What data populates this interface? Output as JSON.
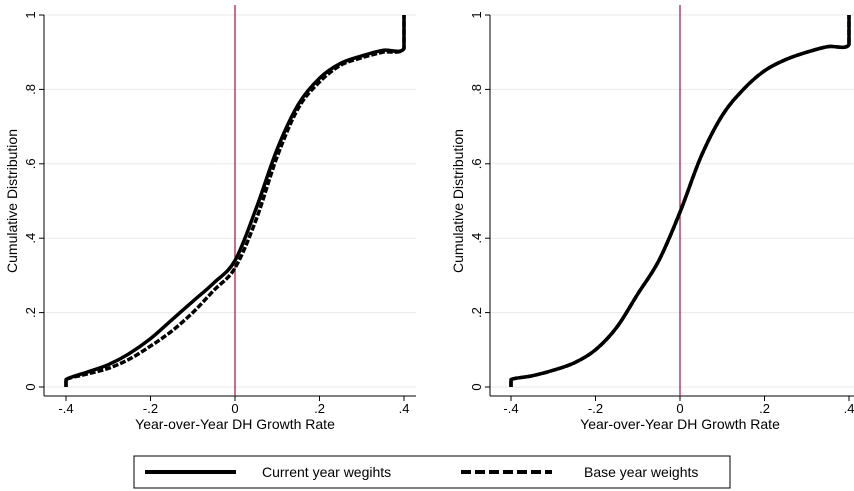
{
  "chart_data": [
    {
      "type": "line",
      "xlabel": "Year-over-Year DH Growth Rate",
      "ylabel": "Cumulative Distribution",
      "xlim": [
        -0.4,
        0.4
      ],
      "ylim": [
        0,
        1
      ],
      "xticks": [
        -0.4,
        -0.2,
        0,
        0.2,
        0.4
      ],
      "xtick_labels": [
        "-.4",
        "-.2",
        "0",
        ".2",
        ".4"
      ],
      "yticks": [
        0,
        0.2,
        0.4,
        0.6,
        0.8,
        1
      ],
      "ytick_labels": [
        "0",
        ".2",
        ".4",
        ".6",
        ".8",
        "1"
      ],
      "grid": true,
      "reference_line_x": 0,
      "series": [
        {
          "name": "Current year wegihts",
          "style": "solid",
          "x": [
            -0.4,
            -0.4,
            -0.35,
            -0.3,
            -0.25,
            -0.2,
            -0.15,
            -0.1,
            -0.05,
            0,
            0.05,
            0.1,
            0.15,
            0.2,
            0.25,
            0.3,
            0.35,
            0.4,
            0.4
          ],
          "y": [
            0.0,
            0.02,
            0.04,
            0.06,
            0.09,
            0.13,
            0.18,
            0.23,
            0.28,
            0.34,
            0.48,
            0.64,
            0.76,
            0.83,
            0.87,
            0.89,
            0.905,
            0.91,
            1.0
          ]
        },
        {
          "name": "Base year weights",
          "style": "dashed",
          "x": [
            -0.4,
            -0.4,
            -0.35,
            -0.3,
            -0.25,
            -0.2,
            -0.15,
            -0.1,
            -0.05,
            0,
            0.05,
            0.1,
            0.15,
            0.2,
            0.25,
            0.3,
            0.35,
            0.4,
            0.4
          ],
          "y": [
            0.0,
            0.02,
            0.035,
            0.05,
            0.075,
            0.11,
            0.15,
            0.2,
            0.26,
            0.32,
            0.45,
            0.62,
            0.75,
            0.82,
            0.865,
            0.885,
            0.9,
            0.91,
            1.0
          ]
        }
      ]
    },
    {
      "type": "line",
      "xlabel": "Year-over-Year DH Growth Rate",
      "ylabel": "Cumulative Distribution",
      "xlim": [
        -0.4,
        0.4
      ],
      "ylim": [
        0,
        1
      ],
      "xticks": [
        -0.4,
        -0.2,
        0,
        0.2,
        0.4
      ],
      "xtick_labels": [
        "-.4",
        "-.2",
        "0",
        ".2",
        ".4"
      ],
      "yticks": [
        0,
        0.2,
        0.4,
        0.6,
        0.8,
        1
      ],
      "ytick_labels": [
        "0",
        ".2",
        ".4",
        ".6",
        ".8",
        "1"
      ],
      "grid": true,
      "reference_line_x": 0,
      "series": [
        {
          "name": "Current year wegihts",
          "style": "solid",
          "x": [
            -0.4,
            -0.4,
            -0.35,
            -0.3,
            -0.25,
            -0.2,
            -0.15,
            -0.1,
            -0.05,
            0,
            0.05,
            0.1,
            0.15,
            0.2,
            0.25,
            0.3,
            0.35,
            0.4,
            0.4
          ],
          "y": [
            0.0,
            0.02,
            0.03,
            0.045,
            0.065,
            0.1,
            0.16,
            0.25,
            0.34,
            0.47,
            0.62,
            0.73,
            0.8,
            0.85,
            0.88,
            0.9,
            0.915,
            0.92,
            1.0
          ]
        },
        {
          "name": "Base year weights",
          "style": "dashed",
          "x": [
            -0.4,
            -0.4,
            -0.35,
            -0.3,
            -0.25,
            -0.2,
            -0.15,
            -0.1,
            -0.05,
            0,
            0.05,
            0.1,
            0.15,
            0.2,
            0.25,
            0.3,
            0.35,
            0.4,
            0.4
          ],
          "y": [
            0.0,
            0.02,
            0.03,
            0.045,
            0.065,
            0.1,
            0.16,
            0.25,
            0.34,
            0.47,
            0.62,
            0.73,
            0.8,
            0.85,
            0.88,
            0.9,
            0.915,
            0.92,
            1.0
          ]
        }
      ]
    }
  ],
  "legend": {
    "placement": "bottom",
    "items": [
      {
        "label": "Current year wegihts",
        "style": "solid"
      },
      {
        "label": "Base year weights",
        "style": "dashed"
      }
    ]
  },
  "colors": {
    "line": "#000000",
    "reference_line": "#b0204f",
    "grid": "#eaeaea",
    "axis": "#000000"
  }
}
